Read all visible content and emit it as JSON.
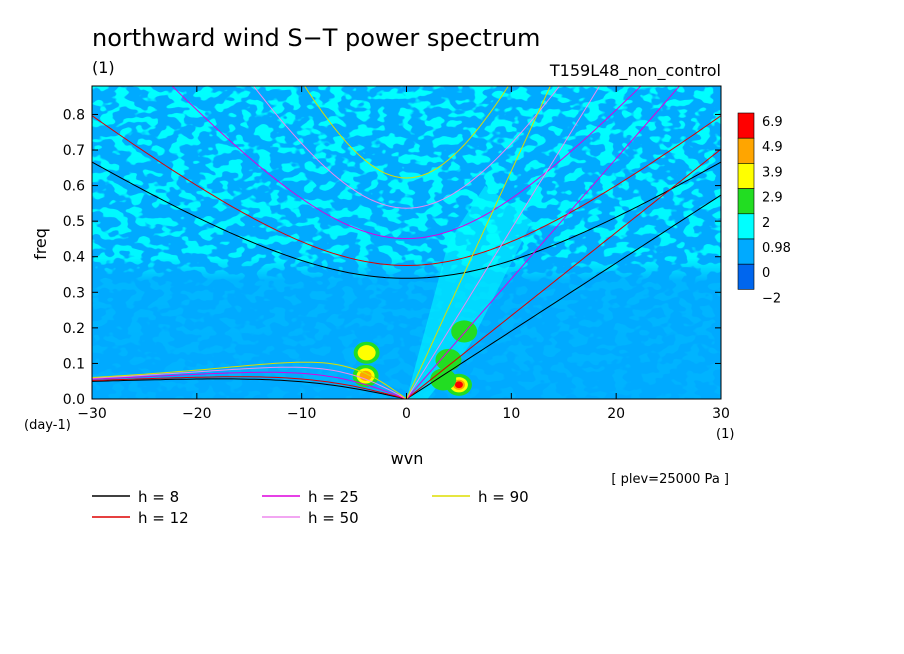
{
  "chart_data": {
    "type": "heatmap",
    "title": "northward wind S−T power spectrum",
    "subtitle_left": "(1)",
    "subtitle_right": "T159L48_non_control",
    "xlabel": "wvn",
    "ylabel": "freq",
    "x_unit": "(1)",
    "y_unit": "(day-1)",
    "xlim": [
      -30,
      30
    ],
    "ylim": [
      0,
      0.88
    ],
    "x_ticks": [
      -30,
      -20,
      -10,
      0,
      10,
      20,
      30
    ],
    "x_tick_labels": [
      "−30",
      "−20",
      "−10",
      "0",
      "10",
      "20",
      "30"
    ],
    "y_ticks": [
      0.0,
      0.1,
      0.2,
      0.3,
      0.4,
      0.5,
      0.6,
      0.7,
      0.8
    ],
    "y_tick_labels": [
      "0.0",
      "0.1",
      "0.2",
      "0.3",
      "0.4",
      "0.5",
      "0.6",
      "0.7",
      "0.8"
    ],
    "annotation": "[ plev=25000 Pa ]",
    "colorbar": {
      "labels": [
        "6.9",
        "4.9",
        "3.9",
        "2.9",
        "2",
        "0.98",
        "0",
        "−2"
      ],
      "colors": [
        "#ff0000",
        "#ffa500",
        "#ffff00",
        "#22dd22",
        "#00ffff",
        "#00aaff",
        "#0066ee"
      ]
    },
    "background_level_color": "#00aaff",
    "contour_patches": [
      {
        "x": -3.9,
        "y": 0.065,
        "level": 2.9
      },
      {
        "x": -3.9,
        "y": 0.065,
        "level": 3.9
      },
      {
        "x": -3.9,
        "y": 0.065,
        "level": 4.9
      },
      {
        "x": -3.8,
        "y": 0.13,
        "level": 2.9
      },
      {
        "x": -3.8,
        "y": 0.13,
        "level": 3.9
      },
      {
        "x": 5.0,
        "y": 0.04,
        "level": 2.9
      },
      {
        "x": 5.0,
        "y": 0.04,
        "level": 3.9
      },
      {
        "x": 5.0,
        "y": 0.04,
        "level": 4.9
      },
      {
        "x": 5.0,
        "y": 0.04,
        "level": 6.9
      },
      {
        "x": 3.5,
        "y": 0.055,
        "level": 2.9
      },
      {
        "x": 5.5,
        "y": 0.19,
        "level": 2.9
      },
      {
        "x": 4.0,
        "y": 0.11,
        "level": 2.9
      }
    ],
    "dispersion_curves": [
      {
        "name": "h =  8",
        "h": 8,
        "color": "#000000"
      },
      {
        "name": "h = 12",
        "h": 12,
        "color": "#dd0000"
      },
      {
        "name": "h = 25",
        "h": 25,
        "color": "#dd00dd"
      },
      {
        "name": "h = 50",
        "h": 50,
        "color": "#ee88ee"
      },
      {
        "name": "h = 90",
        "h": 90,
        "color": "#dddd00"
      }
    ]
  }
}
